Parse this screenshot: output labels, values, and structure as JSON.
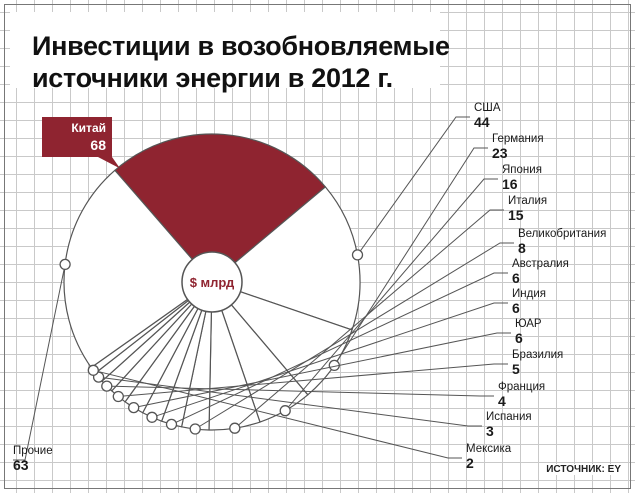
{
  "title_line1": "Инвестиции в возобновляемые",
  "title_line2": "источники энергии в 2012 г.",
  "source": "ИСТОЧНИК: EY",
  "center_label": "$ млрд",
  "colors": {
    "highlight": "#8f2430",
    "highlight_dark": "#5e1119",
    "outline": "#555555",
    "text": "#1a1a1a"
  },
  "chart_data": {
    "type": "pie",
    "variant": "donut",
    "unit": "$ млрд",
    "categories": [
      "Китай",
      "США",
      "Германия",
      "Япония",
      "Италия",
      "Великобритания",
      "Австралия",
      "Индия",
      "ЮАР",
      "Бразилия",
      "Франция",
      "Испания",
      "Мексика",
      "Прочие"
    ],
    "values": [
      68,
      44,
      23,
      16,
      15,
      8,
      6,
      6,
      6,
      5,
      4,
      3,
      2,
      63
    ],
    "highlight": "Китай"
  }
}
